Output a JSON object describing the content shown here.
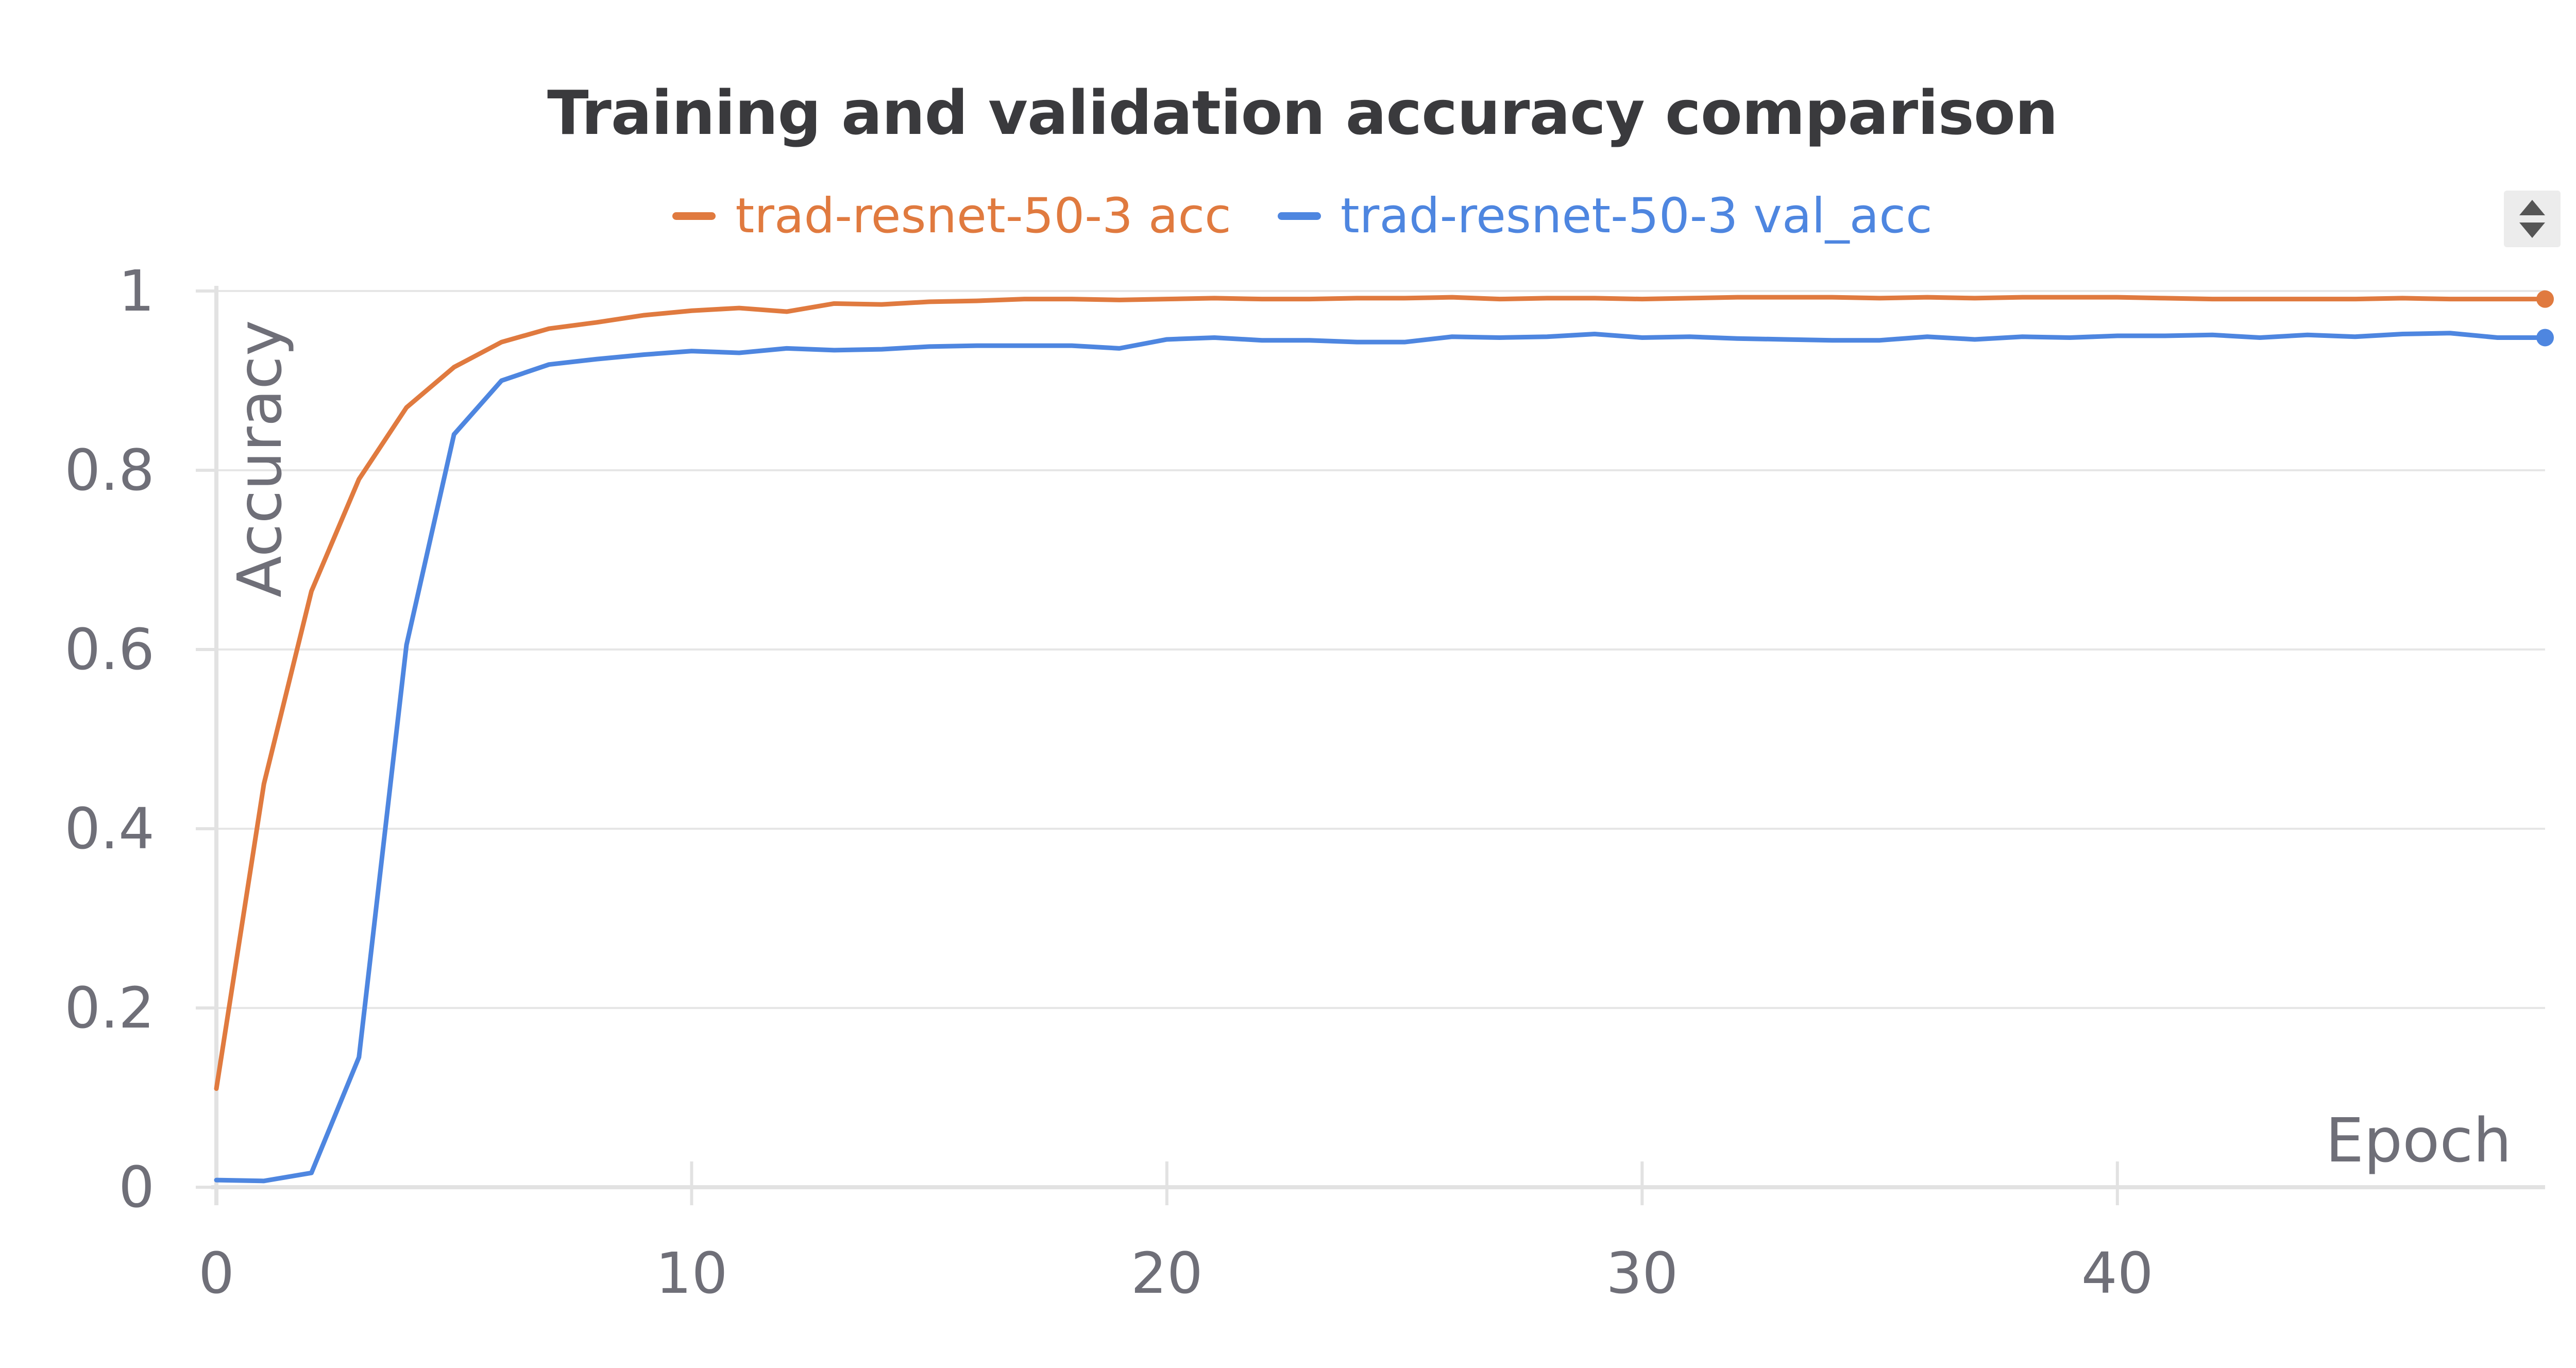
{
  "chart_data": {
    "type": "line",
    "title": "Training and validation accuracy comparison",
    "xlabel": "Epoch",
    "ylabel": "Accuracy",
    "xlim": [
      0,
      49
    ],
    "ylim": [
      0,
      1
    ],
    "x_ticks": [
      "0",
      "10",
      "20",
      "30",
      "40"
    ],
    "y_ticks": [
      "0",
      "0.2",
      "0.4",
      "0.6",
      "0.8",
      "1"
    ],
    "grid": true,
    "legend_position": "top-center",
    "x": [
      0,
      1,
      2,
      3,
      4,
      5,
      6,
      7,
      8,
      9,
      10,
      11,
      12,
      13,
      14,
      15,
      16,
      17,
      18,
      19,
      20,
      21,
      22,
      23,
      24,
      25,
      26,
      27,
      28,
      29,
      30,
      31,
      32,
      33,
      34,
      35,
      36,
      37,
      38,
      39,
      40,
      41,
      42,
      43,
      44,
      45,
      46,
      47,
      48,
      49
    ],
    "series": [
      {
        "name": "trad-resnet-50-3 acc",
        "color": "#e07a3f",
        "values": [
          0.11,
          0.45,
          0.665,
          0.79,
          0.87,
          0.915,
          0.943,
          0.958,
          0.965,
          0.973,
          0.978,
          0.981,
          0.977,
          0.986,
          0.985,
          0.988,
          0.989,
          0.991,
          0.991,
          0.99,
          0.991,
          0.992,
          0.991,
          0.991,
          0.992,
          0.992,
          0.993,
          0.991,
          0.992,
          0.992,
          0.991,
          0.992,
          0.993,
          0.993,
          0.993,
          0.992,
          0.993,
          0.992,
          0.993,
          0.993,
          0.993,
          0.992,
          0.991,
          0.991,
          0.991,
          0.991,
          0.992,
          0.991,
          0.991,
          0.991
        ]
      },
      {
        "name": "trad-resnet-50-3 val_acc",
        "color": "#4e86e0",
        "values": [
          0.008,
          0.007,
          0.016,
          0.145,
          0.605,
          0.84,
          0.9,
          0.918,
          0.924,
          0.929,
          0.933,
          0.931,
          0.936,
          0.934,
          0.935,
          0.938,
          0.939,
          0.939,
          0.939,
          0.936,
          0.946,
          0.948,
          0.945,
          0.945,
          0.943,
          0.943,
          0.949,
          0.948,
          0.949,
          0.952,
          0.948,
          0.949,
          0.947,
          0.946,
          0.945,
          0.945,
          0.949,
          0.946,
          0.949,
          0.948,
          0.95,
          0.95,
          0.951,
          0.948,
          0.951,
          0.949,
          0.952,
          0.953,
          0.948,
          0.948
        ]
      }
    ]
  }
}
